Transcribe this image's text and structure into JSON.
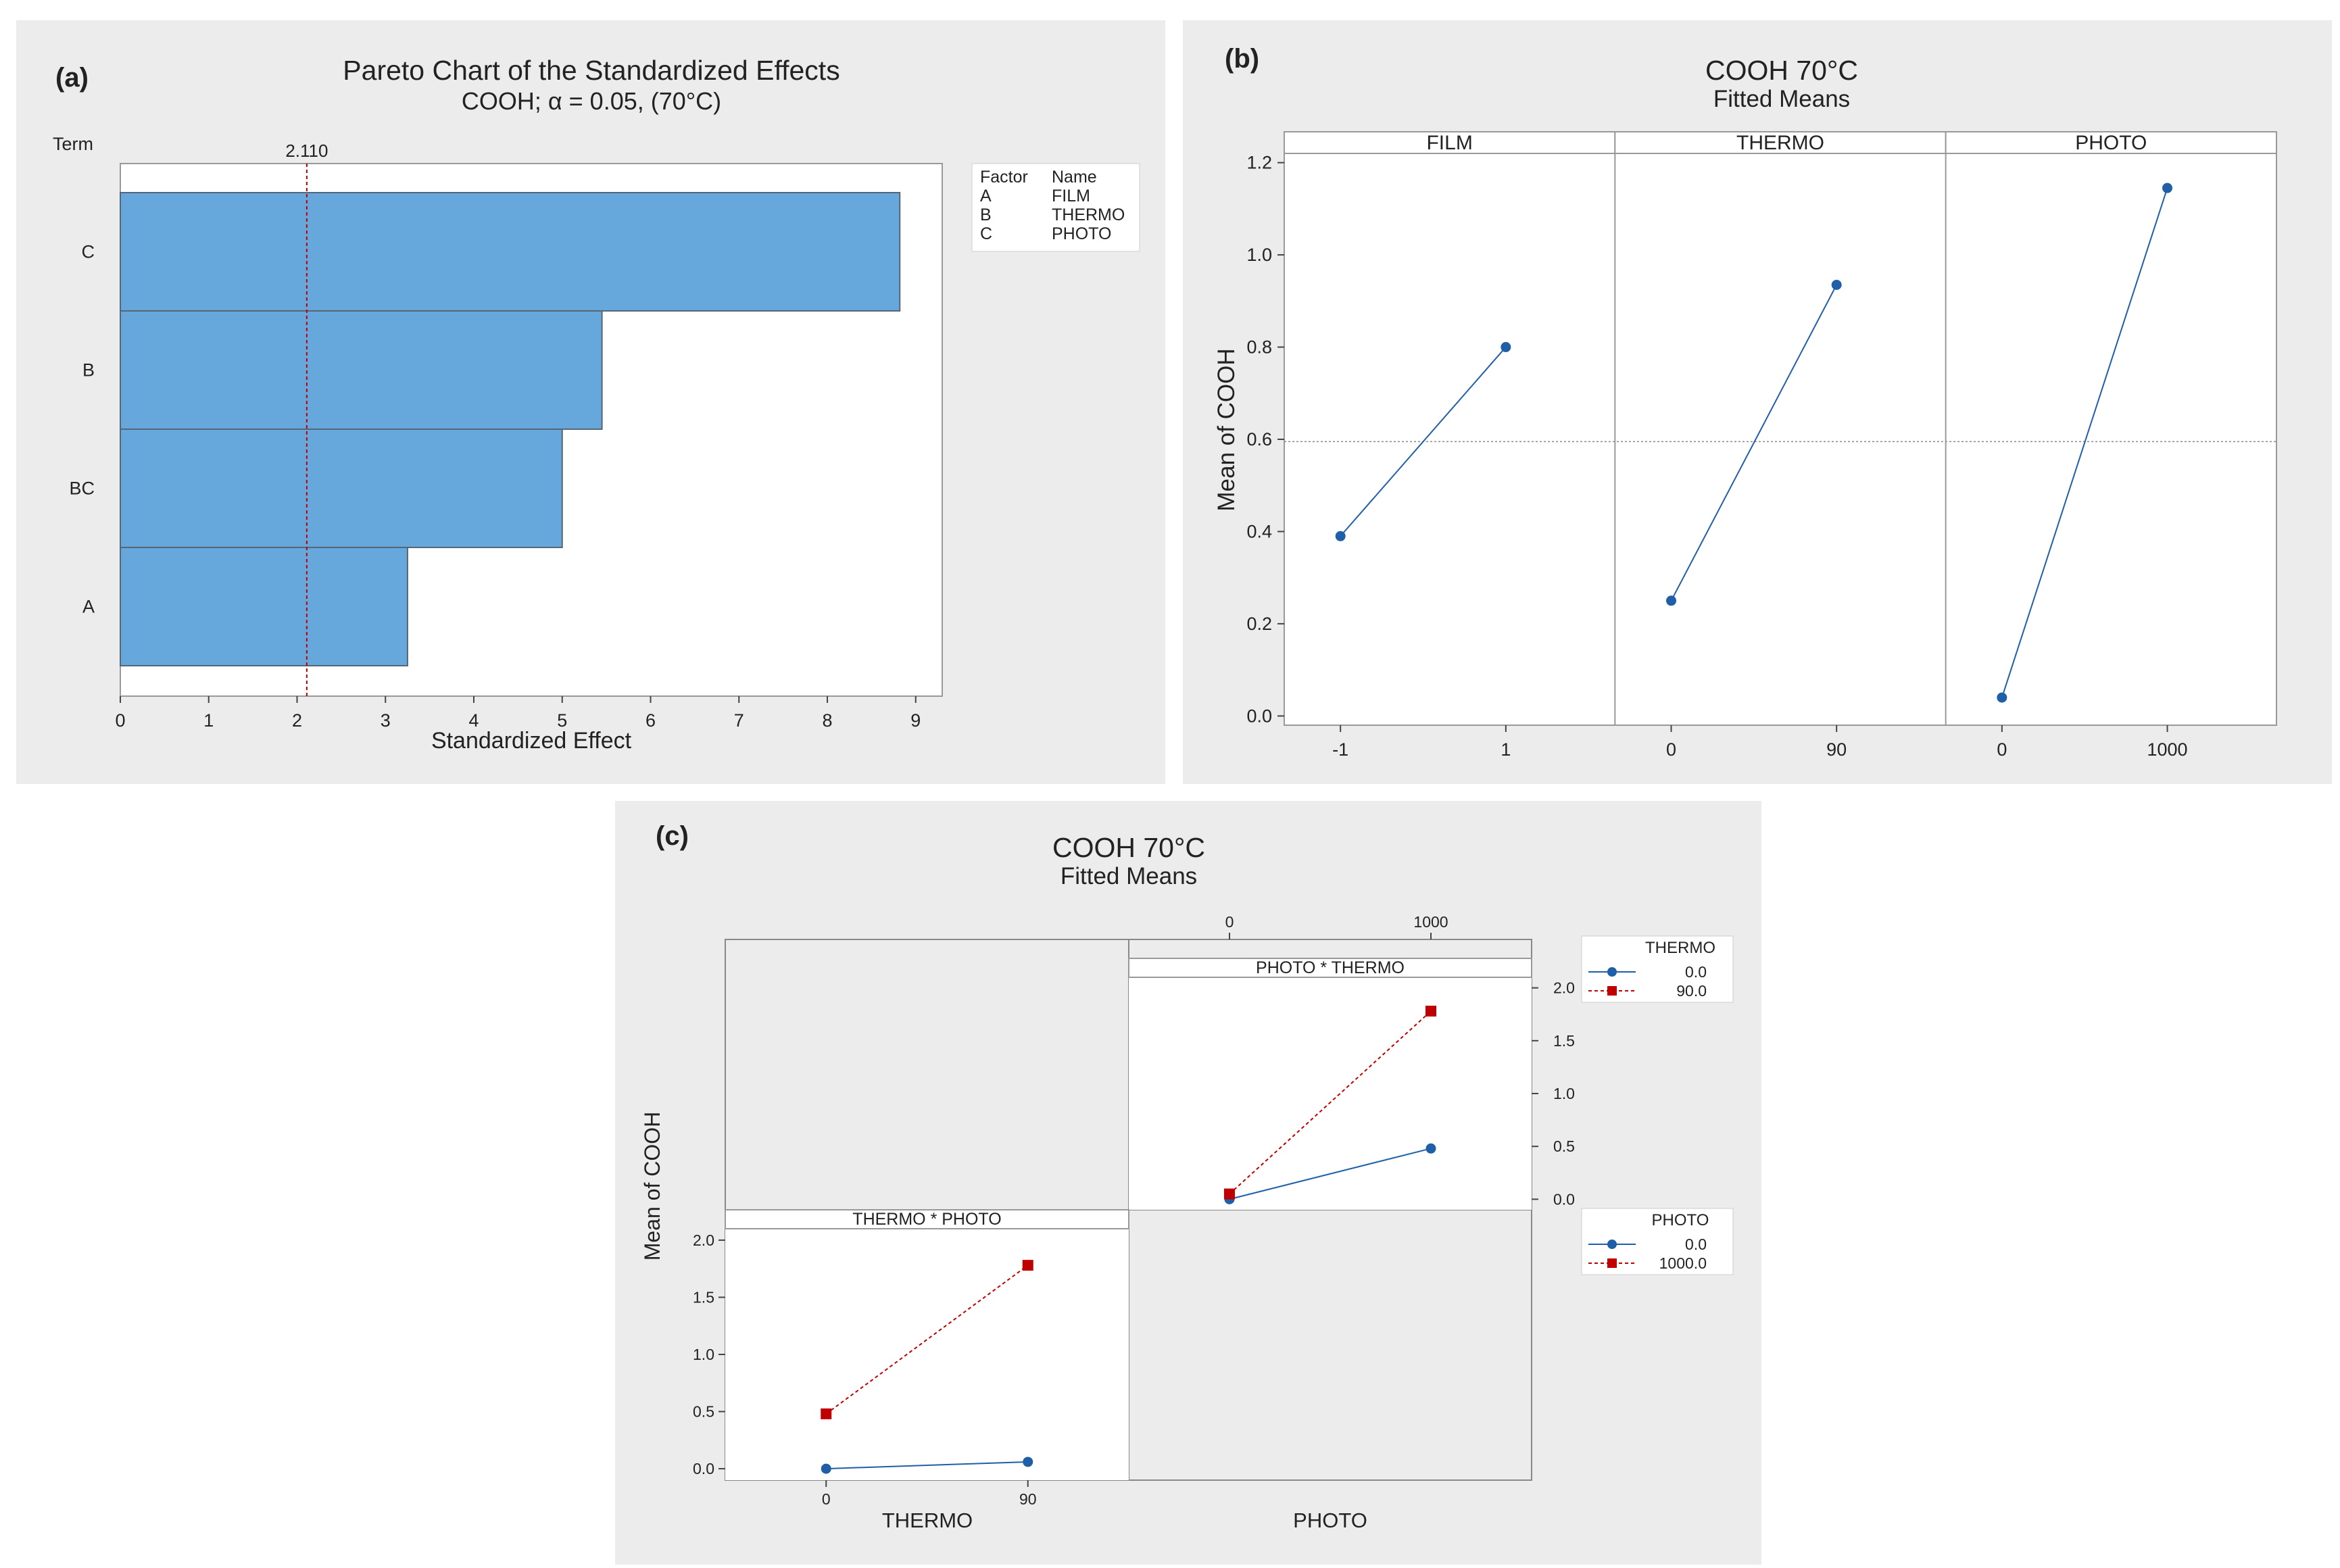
{
  "panels": {
    "a": {
      "label": "(a)"
    },
    "b": {
      "label": "(b)"
    },
    "c": {
      "label": "(c)"
    }
  },
  "chart_data": [
    {
      "type": "bar",
      "orientation": "horizontal",
      "title": "Pareto Chart of the Standardized Effects",
      "subtitle": "COOH; α = 0.05,  (70°C)",
      "xlabel": "Standardized Effect",
      "ylabel": "Term",
      "categories": [
        "C",
        "B",
        "BC",
        "A"
      ],
      "values": [
        8.82,
        5.45,
        5.0,
        3.25
      ],
      "xlim": [
        0,
        9.3
      ],
      "xticks": [
        "0",
        "1",
        "2",
        "3",
        "4",
        "5",
        "6",
        "7",
        "8",
        "9"
      ],
      "reference_line": {
        "value": 2.11,
        "label": "2.110",
        "color": "#c00000"
      },
      "bar_color": "#66a8dc",
      "legend": {
        "header": [
          "Factor",
          "Name"
        ],
        "rows": [
          [
            "A",
            "FILM"
          ],
          [
            "B",
            "THERMO"
          ],
          [
            "C",
            "PHOTO"
          ]
        ]
      }
    },
    {
      "type": "line",
      "title": "COOH  70°C",
      "subtitle": "Fitted Means",
      "ylabel": "Mean of COOH",
      "ylim": [
        -0.02,
        1.22
      ],
      "yticks": [
        "0.0",
        "0.2",
        "0.4",
        "0.6",
        "0.8",
        "1.0",
        "1.2"
      ],
      "reference_line": 0.595,
      "color": "#1f5fa8",
      "panels": [
        {
          "name": "FILM",
          "x": [
            "-1",
            "1"
          ],
          "values": [
            0.39,
            0.8
          ]
        },
        {
          "name": "THERMO",
          "x": [
            "0",
            "90"
          ],
          "values": [
            0.25,
            0.935
          ]
        },
        {
          "name": "PHOTO",
          "x": [
            "0",
            "1000"
          ],
          "values": [
            0.04,
            1.145
          ]
        }
      ]
    },
    {
      "type": "line",
      "title": "COOH  70°C",
      "subtitle": "Fitted Means",
      "ylabel": "Mean of COOH",
      "ylim": [
        -0.1,
        2.1
      ],
      "yticks": [
        "0.0",
        "0.5",
        "1.0",
        "1.5",
        "2.0"
      ],
      "panels": [
        {
          "name": "PHOTO * THERMO",
          "x": [
            "0",
            "1000"
          ],
          "series": [
            {
              "name": "0.0",
              "values": [
                0.0,
                0.48
              ],
              "color": "#1f5fa8"
            },
            {
              "name": "90.0",
              "values": [
                0.05,
                1.78
              ],
              "color": "#c00000"
            }
          ]
        },
        {
          "name": "THERMO * PHOTO",
          "x": [
            "0",
            "90"
          ],
          "series": [
            {
              "name": "0.0",
              "values": [
                0.0,
                0.06
              ],
              "color": "#1f5fa8"
            },
            {
              "name": "1000.0",
              "values": [
                0.48,
                1.78
              ],
              "color": "#c00000"
            }
          ]
        }
      ],
      "xlabels": [
        "THERMO",
        "PHOTO"
      ],
      "legends": [
        {
          "title": "THERMO",
          "entries": [
            "0.0",
            "90.0"
          ]
        },
        {
          "title": "PHOTO",
          "entries": [
            "0.0",
            "1000.0"
          ]
        }
      ]
    }
  ]
}
